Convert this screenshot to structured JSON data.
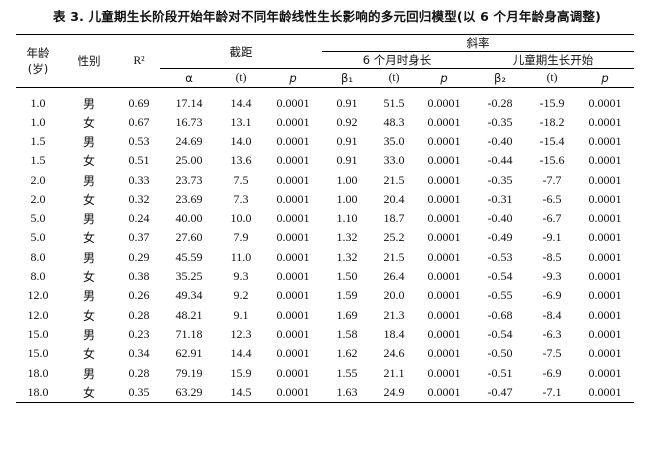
{
  "title": "表 3. 儿童期生长阶段开始年龄对不同年龄线性生长影响的多元回归模型(以 6 个月年龄身高调整)",
  "headers": {
    "age_line1": "年龄",
    "age_line2": "(岁)",
    "sex": "性别",
    "r2": "R²",
    "intercept": "截距",
    "slope": "斜率",
    "height6m": "6 个月时身长",
    "onset": "儿童期生长开始",
    "alpha": "α",
    "t1": "(t)",
    "p1": "p",
    "beta1": "β₁",
    "t2": "(t)",
    "p2": "p",
    "beta2": "β₂",
    "t3": "(t)",
    "p3": "p"
  },
  "rows": [
    {
      "age": "1.0",
      "sex": "男",
      "r2": "0.69",
      "alpha": "17.14",
      "ta": "14.4",
      "pa": "0.0001",
      "b1": "0.91",
      "t1": "51.5",
      "p1": "0.0001",
      "b2": "-0.28",
      "t2": "-15.9",
      "p2": "0.0001"
    },
    {
      "age": "1.0",
      "sex": "女",
      "r2": "0.67",
      "alpha": "16.73",
      "ta": "13.1",
      "pa": "0.0001",
      "b1": "0.92",
      "t1": "48.3",
      "p1": "0.0001",
      "b2": "-0.35",
      "t2": "-18.2",
      "p2": "0.0001"
    },
    {
      "age": "1.5",
      "sex": "男",
      "r2": "0.53",
      "alpha": "24.69",
      "ta": "14.0",
      "pa": "0.0001",
      "b1": "0.91",
      "t1": "35.0",
      "p1": "0.0001",
      "b2": "-0.40",
      "t2": "-15.4",
      "p2": "0.0001"
    },
    {
      "age": "1.5",
      "sex": "女",
      "r2": "0.51",
      "alpha": "25.00",
      "ta": "13.6",
      "pa": "0.0001",
      "b1": "0.91",
      "t1": "33.0",
      "p1": "0.0001",
      "b2": "-0.44",
      "t2": "-15.6",
      "p2": "0.0001"
    },
    {
      "age": "2.0",
      "sex": "男",
      "r2": "0.33",
      "alpha": "23.73",
      "ta": "7.5",
      "pa": "0.0001",
      "b1": "1.00",
      "t1": "21.5",
      "p1": "0.0001",
      "b2": "-0.35",
      "t2": "-7.7",
      "p2": "0.0001"
    },
    {
      "age": "2.0",
      "sex": "女",
      "r2": "0.32",
      "alpha": "23.69",
      "ta": "7.3",
      "pa": "0.0001",
      "b1": "1.00",
      "t1": "20.4",
      "p1": "0.0001",
      "b2": "-0.31",
      "t2": "-6.5",
      "p2": "0.0001"
    },
    {
      "age": "5.0",
      "sex": "男",
      "r2": "0.24",
      "alpha": "40.00",
      "ta": "10.0",
      "pa": "0.0001",
      "b1": "1.10",
      "t1": "18.7",
      "p1": "0.0001",
      "b2": "-0.40",
      "t2": "-6.7",
      "p2": "0.0001"
    },
    {
      "age": "5.0",
      "sex": "女",
      "r2": "0.37",
      "alpha": "27.60",
      "ta": "7.9",
      "pa": "0.0001",
      "b1": "1.32",
      "t1": "25.2",
      "p1": "0.0001",
      "b2": "-0.49",
      "t2": "-9.1",
      "p2": "0.0001"
    },
    {
      "age": "8.0",
      "sex": "男",
      "r2": "0.29",
      "alpha": "45.59",
      "ta": "11.0",
      "pa": "0.0001",
      "b1": "1.32",
      "t1": "21.5",
      "p1": "0.0001",
      "b2": "-0.53",
      "t2": "-8.5",
      "p2": "0.0001"
    },
    {
      "age": "8.0",
      "sex": "女",
      "r2": "0.38",
      "alpha": "35.25",
      "ta": "9.3",
      "pa": "0.0001",
      "b1": "1.50",
      "t1": "26.4",
      "p1": "0.0001",
      "b2": "-0.54",
      "t2": "-9.3",
      "p2": "0.0001"
    },
    {
      "age": "12.0",
      "sex": "男",
      "r2": "0.26",
      "alpha": "49.34",
      "ta": "9.2",
      "pa": "0.0001",
      "b1": "1.59",
      "t1": "20.0",
      "p1": "0.0001",
      "b2": "-0.55",
      "t2": "-6.9",
      "p2": "0.0001"
    },
    {
      "age": "12.0",
      "sex": "女",
      "r2": "0.28",
      "alpha": "48.21",
      "ta": "9.1",
      "pa": "0.0001",
      "b1": "1.69",
      "t1": "21.3",
      "p1": "0.0001",
      "b2": "-0.68",
      "t2": "-8.4",
      "p2": "0.0001"
    },
    {
      "age": "15.0",
      "sex": "男",
      "r2": "0.23",
      "alpha": "71.18",
      "ta": "12.3",
      "pa": "0.0001",
      "b1": "1.58",
      "t1": "18.4",
      "p1": "0.0001",
      "b2": "-0.54",
      "t2": "-6.3",
      "p2": "0.0001"
    },
    {
      "age": "15.0",
      "sex": "女",
      "r2": "0.34",
      "alpha": "62.91",
      "ta": "14.4",
      "pa": "0.0001",
      "b1": "1.62",
      "t1": "24.6",
      "p1": "0.0001",
      "b2": "-0.50",
      "t2": "-7.5",
      "p2": "0.0001"
    },
    {
      "age": "18.0",
      "sex": "男",
      "r2": "0.28",
      "alpha": "79.19",
      "ta": "15.9",
      "pa": "0.0001",
      "b1": "1.55",
      "t1": "21.1",
      "p1": "0.0001",
      "b2": "-0.51",
      "t2": "-6.9",
      "p2": "0.0001"
    },
    {
      "age": "18.0",
      "sex": "女",
      "r2": "0.35",
      "alpha": "63.29",
      "ta": "14.5",
      "pa": "0.0001",
      "b1": "1.63",
      "t1": "24.9",
      "p1": "0.0001",
      "b2": "-0.47",
      "t2": "-7.1",
      "p2": "0.0001"
    }
  ]
}
